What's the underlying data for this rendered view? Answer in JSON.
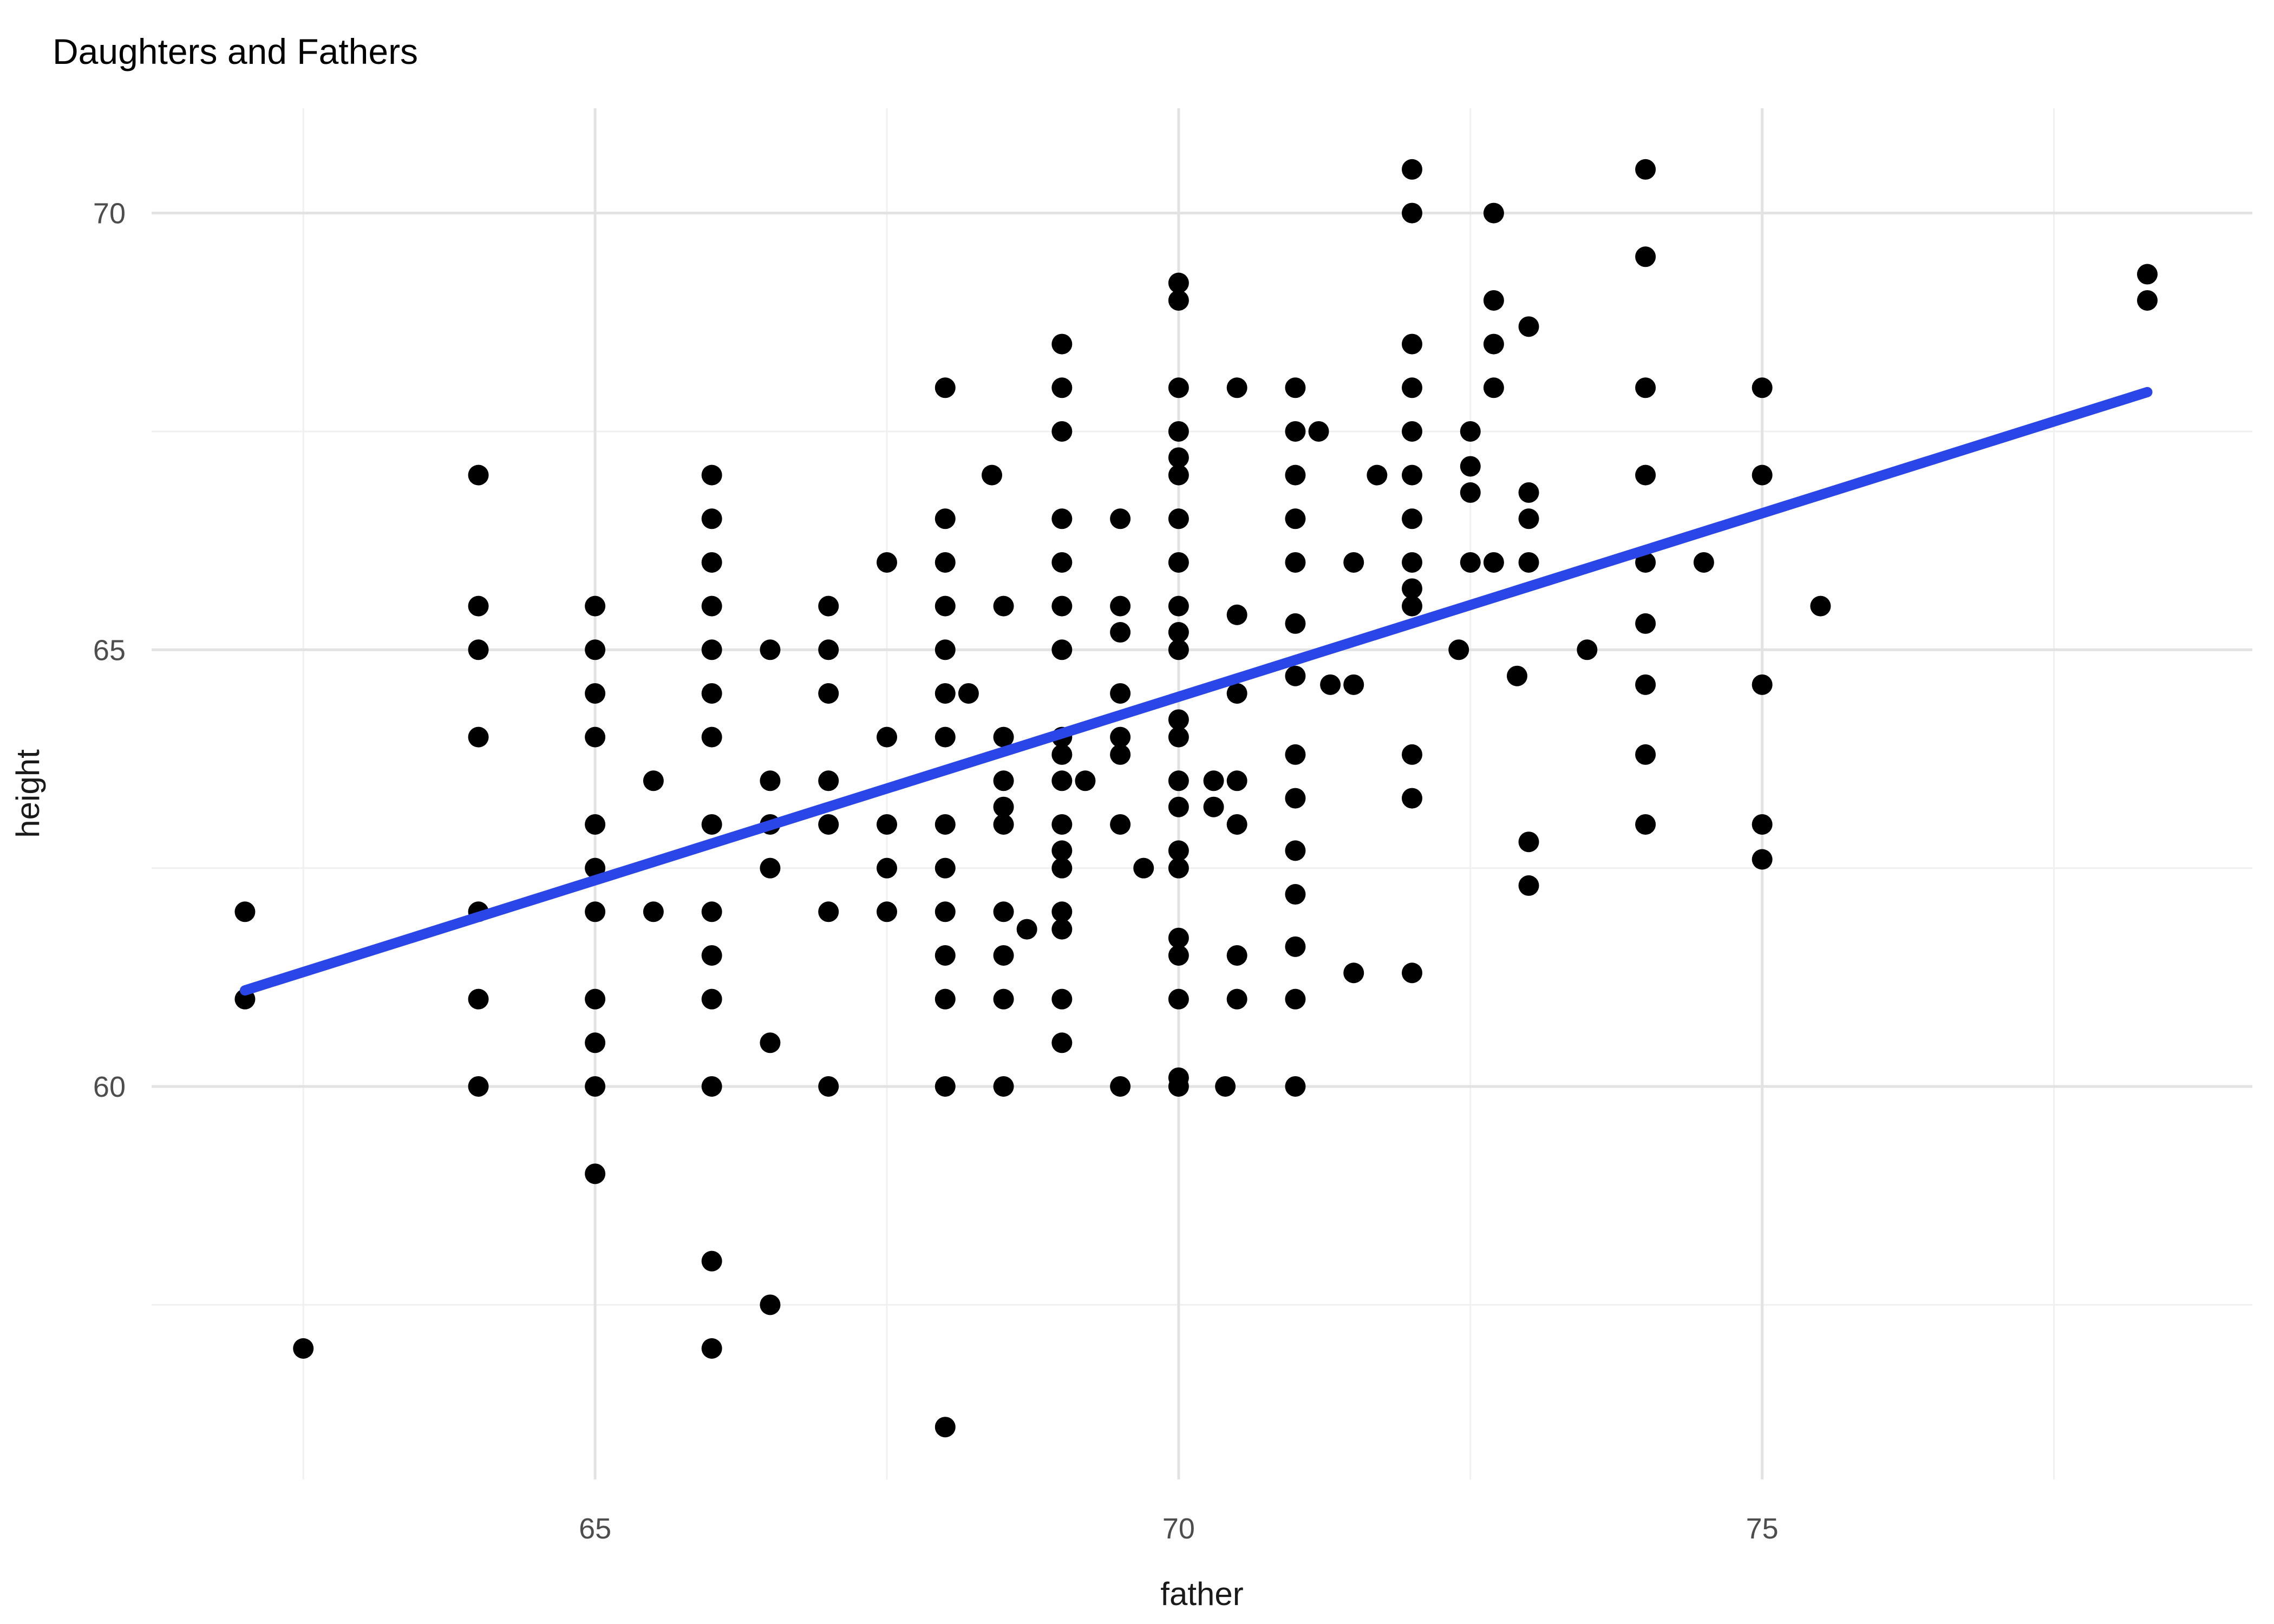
{
  "chart_data": {
    "type": "scatter",
    "title": "Daughters and Fathers",
    "xlabel": "father",
    "ylabel": "height",
    "xlim": [
      61.2,
      79.2
    ],
    "ylim": [
      55.5,
      71.2
    ],
    "x_major_ticks": [
      65,
      70,
      75
    ],
    "x_minor_ticks": [
      62.5,
      67.5,
      72.5,
      77.5
    ],
    "y_major_ticks": [
      60,
      65,
      70
    ],
    "y_minor_ticks": [
      57.5,
      62.5,
      67.5
    ],
    "grid": true,
    "legend_position": "none",
    "point_color": "#000000",
    "point_radius": 19,
    "trend_line": {
      "type": "linear-fit",
      "color": "#2b46e8",
      "stroke_width": 19,
      "x1": 62.0,
      "y1": 61.1,
      "x2": 78.3,
      "y2": 67.95
    },
    "colors": {
      "background": "#ffffff",
      "major_grid": "#e2e2e2",
      "minor_grid": "#f0f0f0",
      "tick_label": "#4d4d4d",
      "axis_title": "#1a1a1a",
      "title": "#000000"
    },
    "points": [
      [
        62,
        62
      ],
      [
        62,
        61
      ],
      [
        62.5,
        57
      ],
      [
        64,
        67
      ],
      [
        64,
        65.5
      ],
      [
        64,
        65
      ],
      [
        64,
        64
      ],
      [
        64,
        62
      ],
      [
        64,
        61
      ],
      [
        64,
        60
      ],
      [
        65,
        65.5
      ],
      [
        65,
        65
      ],
      [
        65,
        64.5
      ],
      [
        65,
        64
      ],
      [
        65,
        63
      ],
      [
        65,
        62.5
      ],
      [
        65,
        62
      ],
      [
        65,
        61
      ],
      [
        65,
        60.5
      ],
      [
        65,
        60
      ],
      [
        65,
        59
      ],
      [
        65.5,
        63.5
      ],
      [
        65.5,
        62
      ],
      [
        66,
        67
      ],
      [
        66,
        66.5
      ],
      [
        66,
        66
      ],
      [
        66,
        65.5
      ],
      [
        66,
        65
      ],
      [
        66,
        64.5
      ],
      [
        66,
        64
      ],
      [
        66,
        63
      ],
      [
        66,
        62
      ],
      [
        66,
        61.5
      ],
      [
        66,
        61
      ],
      [
        66,
        60
      ],
      [
        66,
        58
      ],
      [
        66,
        57
      ],
      [
        66.5,
        65
      ],
      [
        66.5,
        63.5
      ],
      [
        66.5,
        63
      ],
      [
        66.5,
        62.5
      ],
      [
        66.5,
        60.5
      ],
      [
        66.5,
        57.5
      ],
      [
        67,
        65.5
      ],
      [
        67,
        65
      ],
      [
        67,
        64.5
      ],
      [
        67,
        63.5
      ],
      [
        67,
        63
      ],
      [
        67,
        62
      ],
      [
        67,
        60
      ],
      [
        67.5,
        66
      ],
      [
        67.5,
        64
      ],
      [
        67.5,
        63
      ],
      [
        67.5,
        62.5
      ],
      [
        67.5,
        62
      ],
      [
        68,
        68
      ],
      [
        68,
        66.5
      ],
      [
        68,
        66
      ],
      [
        68,
        65.5
      ],
      [
        68,
        65
      ],
      [
        68,
        64.5
      ],
      [
        68,
        64
      ],
      [
        68,
        63
      ],
      [
        68,
        62.5
      ],
      [
        68,
        62
      ],
      [
        68,
        61.5
      ],
      [
        68,
        61
      ],
      [
        68,
        60
      ],
      [
        68,
        56.1
      ],
      [
        68.2,
        64.5
      ],
      [
        68.4,
        67
      ],
      [
        68.5,
        65.5
      ],
      [
        68.5,
        64
      ],
      [
        68.5,
        63.5
      ],
      [
        68.5,
        63.2
      ],
      [
        68.5,
        63
      ],
      [
        68.5,
        62
      ],
      [
        68.5,
        61.5
      ],
      [
        68.5,
        61
      ],
      [
        68.5,
        60
      ],
      [
        68.7,
        61.8
      ],
      [
        69,
        68.5
      ],
      [
        69,
        68
      ],
      [
        69,
        67.5
      ],
      [
        69,
        66.5
      ],
      [
        69,
        66
      ],
      [
        69,
        65.5
      ],
      [
        69,
        65
      ],
      [
        69,
        64
      ],
      [
        69,
        63.8
      ],
      [
        69,
        63.5
      ],
      [
        69,
        63
      ],
      [
        69,
        62.7
      ],
      [
        69,
        62.5
      ],
      [
        69,
        62
      ],
      [
        69,
        61.8
      ],
      [
        69,
        61
      ],
      [
        69,
        60.5
      ],
      [
        69.2,
        63.5
      ],
      [
        69.5,
        66.5
      ],
      [
        69.5,
        65.5
      ],
      [
        69.5,
        65.2
      ],
      [
        69.5,
        64.5
      ],
      [
        69.5,
        64
      ],
      [
        69.5,
        63.8
      ],
      [
        69.5,
        63
      ],
      [
        69.5,
        60
      ],
      [
        69.7,
        62.5
      ],
      [
        70,
        69.2
      ],
      [
        70,
        69
      ],
      [
        70,
        68
      ],
      [
        70,
        67.5
      ],
      [
        70,
        67.2
      ],
      [
        70,
        67
      ],
      [
        70,
        66.5
      ],
      [
        70,
        66
      ],
      [
        70,
        65.5
      ],
      [
        70,
        65.2
      ],
      [
        70,
        65
      ],
      [
        70,
        64.2
      ],
      [
        70,
        64
      ],
      [
        70,
        63.5
      ],
      [
        70,
        63.2
      ],
      [
        70,
        62.7
      ],
      [
        70,
        62.5
      ],
      [
        70,
        61.7
      ],
      [
        70,
        61.5
      ],
      [
        70,
        61
      ],
      [
        70,
        60.1
      ],
      [
        70,
        60
      ],
      [
        70.3,
        63.5
      ],
      [
        70.3,
        63.2
      ],
      [
        70.4,
        60
      ],
      [
        70.5,
        68
      ],
      [
        70.5,
        65.4
      ],
      [
        70.5,
        64.5
      ],
      [
        70.5,
        63.5
      ],
      [
        70.5,
        63
      ],
      [
        70.5,
        61.5
      ],
      [
        70.5,
        61
      ],
      [
        71,
        68
      ],
      [
        71,
        67.5
      ],
      [
        71,
        67
      ],
      [
        71,
        66.5
      ],
      [
        71,
        66
      ],
      [
        71,
        65.3
      ],
      [
        71,
        64.7
      ],
      [
        71,
        63.8
      ],
      [
        71,
        63.3
      ],
      [
        71,
        62.7
      ],
      [
        71,
        62.2
      ],
      [
        71,
        61.6
      ],
      [
        71,
        61
      ],
      [
        71,
        60
      ],
      [
        71.2,
        67.5
      ],
      [
        71.3,
        64.6
      ],
      [
        71.5,
        66
      ],
      [
        71.5,
        64.6
      ],
      [
        71.5,
        61.3
      ],
      [
        71.7,
        67
      ],
      [
        72,
        70.5
      ],
      [
        72,
        70
      ],
      [
        72,
        68.5
      ],
      [
        72,
        68
      ],
      [
        72,
        67.5
      ],
      [
        72,
        67
      ],
      [
        72,
        66.5
      ],
      [
        72,
        66
      ],
      [
        72,
        65.7
      ],
      [
        72,
        65.5
      ],
      [
        72,
        63.8
      ],
      [
        72,
        63.3
      ],
      [
        72,
        61.3
      ],
      [
        72.4,
        65
      ],
      [
        72.5,
        67.5
      ],
      [
        72.5,
        67.1
      ],
      [
        72.5,
        66.8
      ],
      [
        72.5,
        66
      ],
      [
        72.7,
        70
      ],
      [
        72.7,
        69
      ],
      [
        72.7,
        68.5
      ],
      [
        72.7,
        68
      ],
      [
        72.7,
        66
      ],
      [
        72.9,
        64.7
      ],
      [
        73,
        68.7
      ],
      [
        73,
        66.8
      ],
      [
        73,
        66.5
      ],
      [
        73,
        66
      ],
      [
        73,
        62.8
      ],
      [
        73,
        62.3
      ],
      [
        73.5,
        65
      ],
      [
        74,
        70.5
      ],
      [
        74,
        69.5
      ],
      [
        74,
        68
      ],
      [
        74,
        67
      ],
      [
        74,
        66
      ],
      [
        74,
        65.3
      ],
      [
        74,
        64.6
      ],
      [
        74,
        63.8
      ],
      [
        74,
        63
      ],
      [
        74.5,
        66
      ],
      [
        75,
        68
      ],
      [
        75,
        67
      ],
      [
        75,
        64.6
      ],
      [
        75,
        63
      ],
      [
        75,
        62.6
      ],
      [
        75.5,
        65.5
      ],
      [
        78.3,
        69.3
      ],
      [
        78.3,
        69
      ]
    ]
  }
}
